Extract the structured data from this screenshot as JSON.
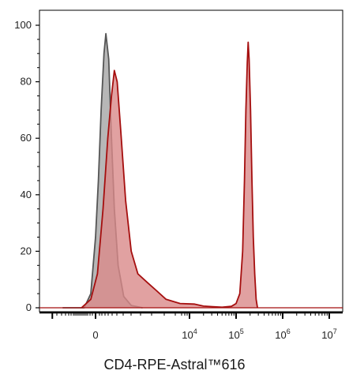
{
  "chart_data": {
    "type": "area",
    "xlabel": "CD4-RPE-Astral™616",
    "ylabel": "",
    "ylim": [
      0,
      100
    ],
    "y_ticks": [
      0,
      20,
      40,
      60,
      80,
      100
    ],
    "x_scale": "biexponential",
    "x_tick_labels": [
      {
        "base": "0",
        "exp": ""
      },
      {
        "base": "10",
        "exp": "4"
      },
      {
        "base": "10",
        "exp": "5"
      },
      {
        "base": "10",
        "exp": "6"
      },
      {
        "base": "10",
        "exp": "7"
      }
    ],
    "grid": false,
    "series": [
      {
        "color": "#555555",
        "fill": "#b3b3b3",
        "points": [
          [
            -0.35,
            0
          ],
          [
            -0.12,
            0
          ],
          [
            -0.05,
            5
          ],
          [
            0.0,
            25
          ],
          [
            0.03,
            45
          ],
          [
            0.06,
            70
          ],
          [
            0.09,
            90
          ],
          [
            0.11,
            97
          ],
          [
            0.14,
            88
          ],
          [
            0.17,
            60
          ],
          [
            0.2,
            35
          ],
          [
            0.24,
            15
          ],
          [
            0.3,
            4
          ],
          [
            0.38,
            0.8
          ],
          [
            0.5,
            0
          ]
        ]
      },
      {
        "color": "#a50e0e",
        "fill": "#d98a8a",
        "points": [
          [
            -0.15,
            0
          ],
          [
            -0.05,
            3
          ],
          [
            0.02,
            12
          ],
          [
            0.08,
            35
          ],
          [
            0.13,
            60
          ],
          [
            0.17,
            75
          ],
          [
            0.2,
            84
          ],
          [
            0.23,
            80
          ],
          [
            0.27,
            62
          ],
          [
            0.32,
            38
          ],
          [
            0.38,
            20
          ],
          [
            0.45,
            12
          ],
          [
            0.55,
            9
          ],
          [
            0.65,
            6
          ],
          [
            0.75,
            3
          ],
          [
            0.9,
            1.5
          ],
          [
            1.1,
            1.3
          ],
          [
            1.3,
            0.6
          ],
          [
            1.5,
            0.4
          ],
          [
            1.7,
            0.2
          ],
          [
            1.9,
            0.5
          ],
          [
            2.0,
            1.5
          ],
          [
            2.08,
            5
          ],
          [
            2.14,
            20
          ],
          [
            2.18,
            45
          ],
          [
            2.21,
            70
          ],
          [
            2.24,
            87
          ],
          [
            2.26,
            94
          ],
          [
            2.28,
            88
          ],
          [
            2.31,
            70
          ],
          [
            2.34,
            45
          ],
          [
            2.37,
            25
          ],
          [
            2.4,
            12
          ],
          [
            2.43,
            3
          ],
          [
            2.46,
            0
          ]
        ]
      }
    ]
  }
}
